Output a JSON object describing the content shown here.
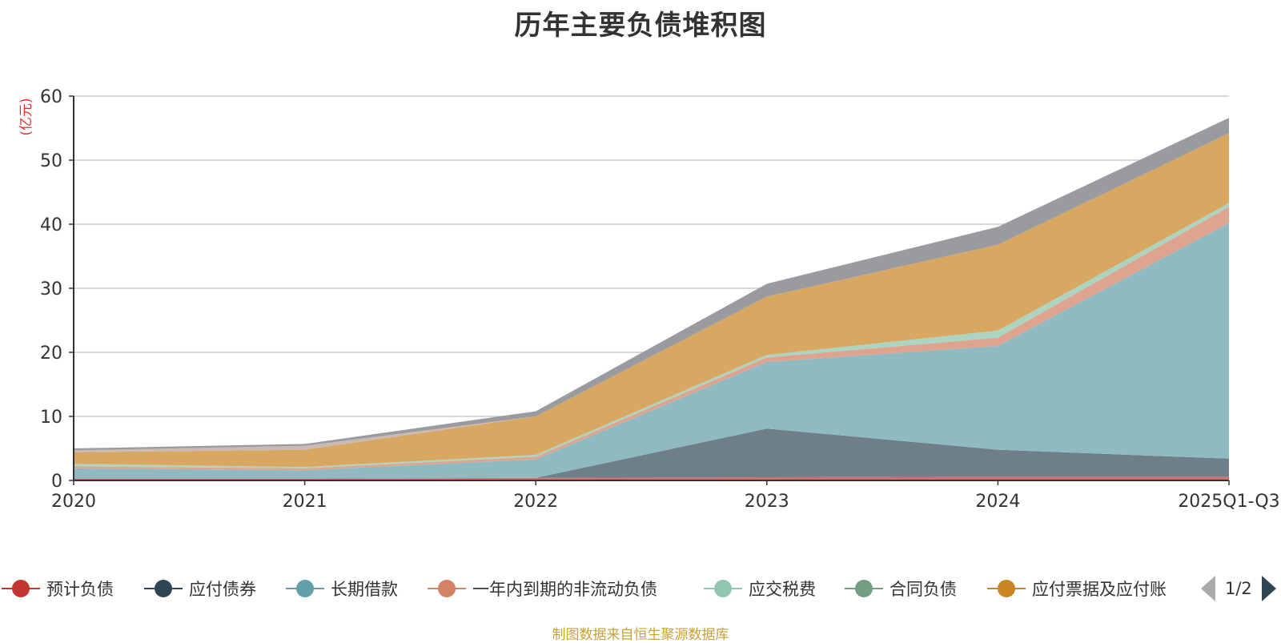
{
  "chart_data": {
    "type": "area",
    "stacked": true,
    "title": "历年主要负债堆积图",
    "ylabel": "亿元",
    "categories": [
      "2020",
      "2021",
      "2022",
      "2023",
      "2024",
      "2025Q1-Q3"
    ],
    "ylim": [
      0,
      60
    ],
    "yticks": [
      0,
      10,
      20,
      30,
      40,
      50,
      60
    ],
    "grid": true,
    "legend_position": "bottom",
    "series": [
      {
        "name": "预计负债",
        "legend_color": "#c23531",
        "fill": "#d06f6f",
        "values": [
          0.3,
          0.3,
          0.4,
          0.5,
          0.6,
          0.6
        ]
      },
      {
        "name": "应付债券",
        "legend_color": "#2f4554",
        "fill": "#6f7f89",
        "values": [
          0.0,
          0.0,
          0.0,
          7.6,
          4.2,
          2.8
        ]
      },
      {
        "name": "长期借款",
        "legend_color": "#61a0a8",
        "fill": "#90bac1",
        "values": [
          1.6,
          1.3,
          2.9,
          10.4,
          16.2,
          36.8
        ]
      },
      {
        "name": "一年内到期的非流动负债",
        "legend_color": "#d48265",
        "fill": "#dfa48f",
        "values": [
          0.3,
          0.3,
          0.4,
          0.7,
          1.3,
          2.5
        ]
      },
      {
        "name": "应交税费",
        "legend_color": "#91c7ae",
        "fill": "#add4c0",
        "values": [
          0.4,
          0.2,
          0.3,
          0.4,
          1.1,
          0.6
        ]
      },
      {
        "name": "合同负债",
        "legend_color": "#749f83",
        "fill": "#96b6a0",
        "values": [
          0.0,
          0.0,
          0.0,
          0.0,
          0.0,
          0.0
        ]
      },
      {
        "name": "应付票据及应付账",
        "legend_color": "#ca8622",
        "fill": "#d8a862",
        "values": [
          1.8,
          2.7,
          6.0,
          9.1,
          13.4,
          10.9
        ]
      },
      {
        "name": "",
        "legend_color": "#bda29a",
        "fill": "#cbbab3",
        "values": [
          0.3,
          0.6,
          0.0,
          0.0,
          0.0,
          0.0
        ]
      },
      {
        "name": "",
        "legend_color": "#6e7074",
        "fill": "#9a9b9f",
        "values": [
          0.3,
          0.3,
          0.8,
          2.0,
          2.8,
          2.4
        ]
      }
    ]
  },
  "legend": {
    "visible_count": 7,
    "page_indicator": "1/2"
  },
  "source_note": "制图数据来自恒生聚源数据库"
}
